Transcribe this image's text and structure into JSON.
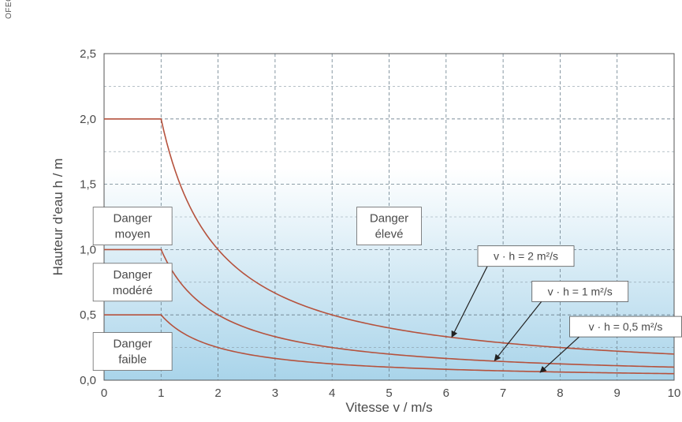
{
  "source_label": "OFEG",
  "chart_data": {
    "type": "line",
    "xlabel": "Vitesse v / m/s",
    "ylabel": "Hauteur d'eau h / m",
    "xlim": [
      0,
      10
    ],
    "ylim": [
      0,
      2.5
    ],
    "x_ticks": [
      "0",
      "1",
      "2",
      "3",
      "4",
      "5",
      "6",
      "7",
      "8",
      "9",
      "10"
    ],
    "y_ticks": [
      "0,0",
      "0,5",
      "1,0",
      "1,5",
      "2,0",
      "2,5"
    ],
    "grid": true,
    "background_gradient": {
      "top": "#ffffff",
      "bottom": "#a9d4ea"
    },
    "series": [
      {
        "name": "v · h = 2 m²/s",
        "plateau": 2.0,
        "vh": 2.0,
        "color": "#b5523d"
      },
      {
        "name": "v · h = 1 m²/s",
        "plateau": 1.0,
        "vh": 1.0,
        "color": "#b5523d"
      },
      {
        "name": "v · h = 0,5 m²/s",
        "plateau": 0.5,
        "vh": 0.5,
        "color": "#b5523d"
      }
    ],
    "zone_labels": [
      {
        "lines": [
          "Danger",
          "moyen"
        ],
        "x": 0.5,
        "y": 1.18
      },
      {
        "lines": [
          "Danger",
          "élevé"
        ],
        "x": 5.0,
        "y": 1.18
      },
      {
        "lines": [
          "Danger",
          "modéré"
        ],
        "x": 0.5,
        "y": 0.75
      },
      {
        "lines": [
          "Danger",
          "faible"
        ],
        "x": 0.5,
        "y": 0.22
      }
    ],
    "annotations": [
      {
        "text": "v · h = 2 m²/s",
        "box_x": 7.4,
        "box_y": 0.95,
        "arrow_to": [
          6.1,
          0.33
        ]
      },
      {
        "text": "v · h = 1 m²/s",
        "box_x": 8.35,
        "box_y": 0.68,
        "arrow_to": [
          6.85,
          0.15
        ]
      },
      {
        "text": "v · h = 0,5 m²/s",
        "box_x": 9.15,
        "box_y": 0.41,
        "arrow_to": [
          7.65,
          0.06
        ]
      }
    ]
  }
}
